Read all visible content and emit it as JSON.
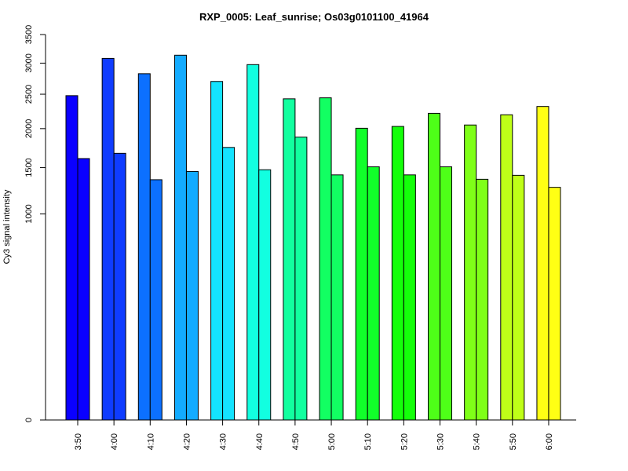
{
  "chart_data": {
    "type": "bar",
    "title": "RXP_0005: Leaf_sunrise; Os03g0101100_41964",
    "xlabel": "",
    "ylabel": "Cy3 signal intensity",
    "y_scale": "sqrt",
    "ylim": [
      0,
      3500
    ],
    "y_ticks": [
      0,
      1000,
      1500,
      2000,
      2500,
      3000,
      3500
    ],
    "y_tick_labels": [
      "0",
      "1000",
      "1500",
      "2000",
      "2500",
      "3000",
      "3500"
    ],
    "grid": false,
    "legend": "none",
    "bars_per_category": 2,
    "categories": [
      "3:50",
      "4:00",
      "4:10",
      "4:20",
      "4:30",
      "4:40",
      "4:50",
      "5:00",
      "5:10",
      "5:20",
      "5:30",
      "5:40",
      "5:50",
      "6:00"
    ],
    "colors": [
      "#0a00ff",
      "#0f3cff",
      "#0c70ff",
      "#13abff",
      "#14e3ff",
      "#12ffe0",
      "#12ff9f",
      "#12ff62",
      "#11ff2a",
      "#14ff0a",
      "#4eff18",
      "#7fff18",
      "#bfff18",
      "#ffff14"
    ],
    "series": [
      {
        "values": [
          2478,
          3080,
          2825,
          3135,
          2700,
          2975,
          2430,
          2445,
          2005,
          2030,
          2215,
          2050,
          2195,
          2315
        ]
      },
      {
        "values": [
          1610,
          1675,
          1360,
          1455,
          1750,
          1475,
          1885,
          1415,
          1510,
          1415,
          1510,
          1365,
          1410,
          1275
        ]
      }
    ]
  }
}
